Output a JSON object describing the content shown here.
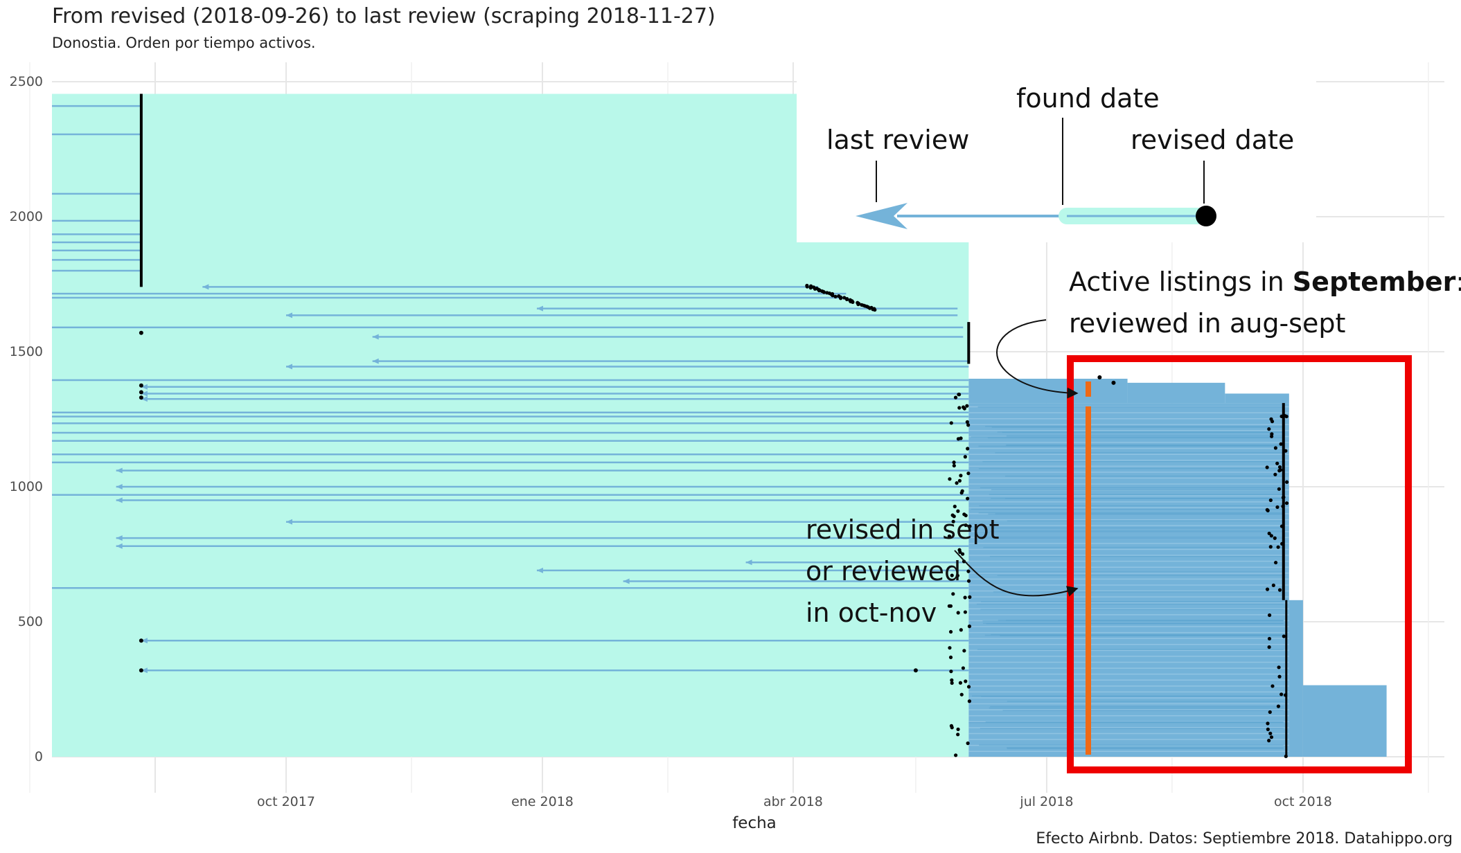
{
  "chart_data": {
    "type": "line",
    "title": "From revised (2018-09-26) to last review (scraping 2018-11-27)",
    "subtitle": "Donostia. Orden por tiempo activos.",
    "xlabel": "fecha",
    "ylabel": "",
    "caption": "Efecto Airbnb. Datos: Septiembre 2018. Datahippo.org",
    "x_tick_labels": [
      "oct 2017",
      "ene 2018",
      "abr 2018",
      "jul 2018",
      "oct 2018"
    ],
    "y_ticks": [
      0,
      500,
      1000,
      1500,
      2000,
      2500
    ],
    "xlim": [
      "2017-05-15",
      "2018-12-05"
    ],
    "ylim": [
      -100,
      2560
    ],
    "grid": true,
    "colors": {
      "revised_span": "#b9f8ea",
      "review_arrow": "#74b3d9",
      "found_point": "#000000",
      "highlight_box": "#ee0000",
      "highlight_bar": "#ef6a16"
    },
    "series": [
      {
        "name": "revised date",
        "x_start": "2017-06-01",
        "x_end": "2017-08-10",
        "y": [
          0,
          2455
        ]
      },
      {
        "name": "found date",
        "x": [
          "2017-08-10",
          "2018-06-03",
          "2018-09-24",
          "2018-09-26"
        ],
        "y": [
          [
            1740,
            2455
          ],
          [
            1000,
            1660
          ],
          [
            0,
            1310
          ],
          [
            0,
            580
          ]
        ]
      }
    ],
    "annotations": {
      "legend_last_review": "last review",
      "legend_found_date": "found date",
      "legend_revised_date": "revised date",
      "active_prefix": "Active listings in ",
      "active_bold": "September",
      "active_suffix": ":",
      "active_line2": "reviewed in aug-sept",
      "revised_line1": "revised in sept",
      "revised_line2": "or reviewed",
      "revised_line3": "in oct-nov"
    }
  }
}
